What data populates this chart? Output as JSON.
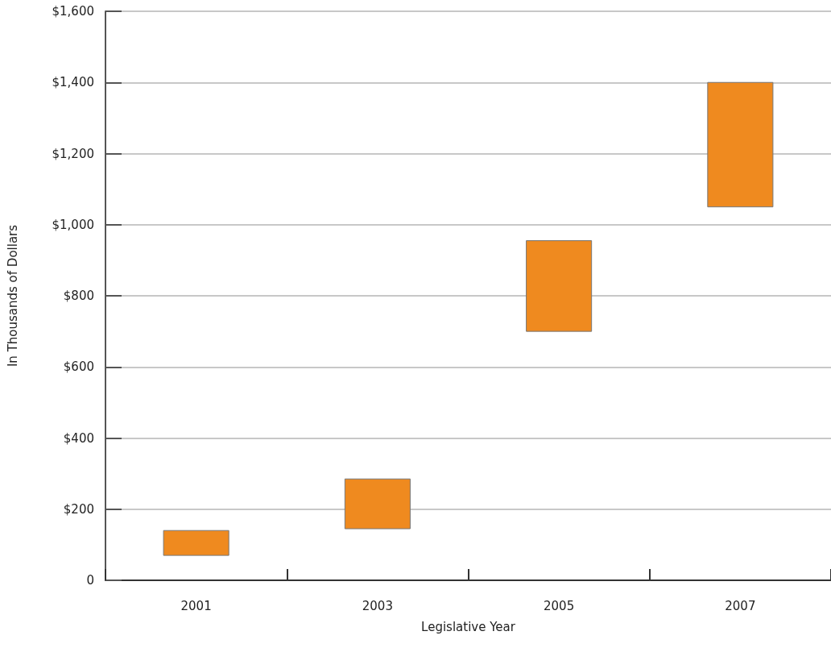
{
  "chart_data": {
    "type": "bar",
    "xlabel": "Legislative Year",
    "ylabel": "In Thousands of Dollars",
    "categories": [
      "2001",
      "2003",
      "2005",
      "2007"
    ],
    "base": [
      70,
      145,
      700,
      1050
    ],
    "values": [
      70,
      140,
      255,
      350
    ],
    "color": "#ef8a1f",
    "ylim": [
      0,
      1600
    ],
    "yticks": [
      0,
      {
        "value": 200,
        "label": "$200"
      },
      {
        "value": 400,
        "label": "$400"
      },
      {
        "value": 600,
        "label": "$600"
      },
      {
        "value": 800,
        "label": "$800"
      },
      {
        "value": 1000,
        "label": "$1,000"
      },
      {
        "value": 1200,
        "label": "$1,200"
      },
      {
        "value": 1400,
        "label": "$1,400"
      },
      {
        "value": 1600,
        "label": "$1,600"
      }
    ],
    "grid": "y"
  }
}
